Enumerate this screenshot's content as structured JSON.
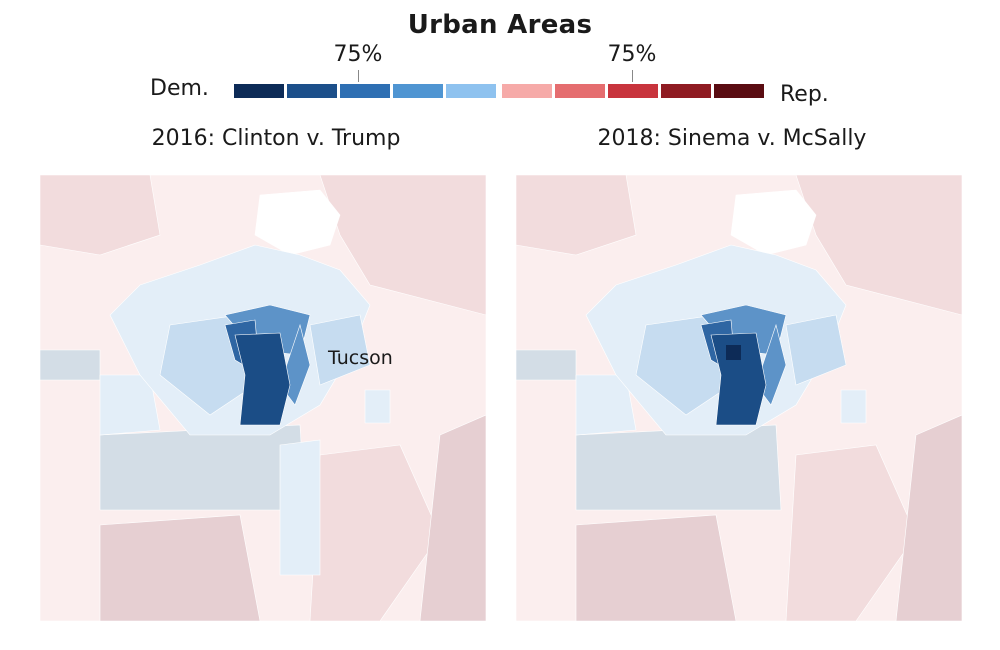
{
  "title": "Urban Areas",
  "legend": {
    "left_label": "Dem.",
    "right_label": "Rep.",
    "dem_tick": "75%",
    "rep_tick": "75%",
    "dem_colors": [
      "#0d2b57",
      "#1c4f8a",
      "#2e6fb3",
      "#4f95d2",
      "#8ec2ef"
    ],
    "rep_colors": [
      "#f6aaa8",
      "#e56d6f",
      "#c8343d",
      "#8f1b22",
      "#5a0c12"
    ]
  },
  "maps": [
    {
      "title": "2016: Clinton v. Trump",
      "city_label": "Tucson"
    },
    {
      "title": "2018: Sinema v. McSally",
      "city_label": ""
    }
  ],
  "colors": {
    "rep_light": "#fbeeee",
    "rep_mid": "#f2dcdd",
    "rep_dark": "#e6cfd2",
    "neutral_gray": "#d3dde6",
    "dem_pale": "#e3eef8",
    "dem_light": "#c6dcf0",
    "dem_mid": "#5d93c8",
    "dem_dark": "#2f66a3",
    "dem_darkest": "#1b4d86",
    "white": "#ffffff"
  }
}
